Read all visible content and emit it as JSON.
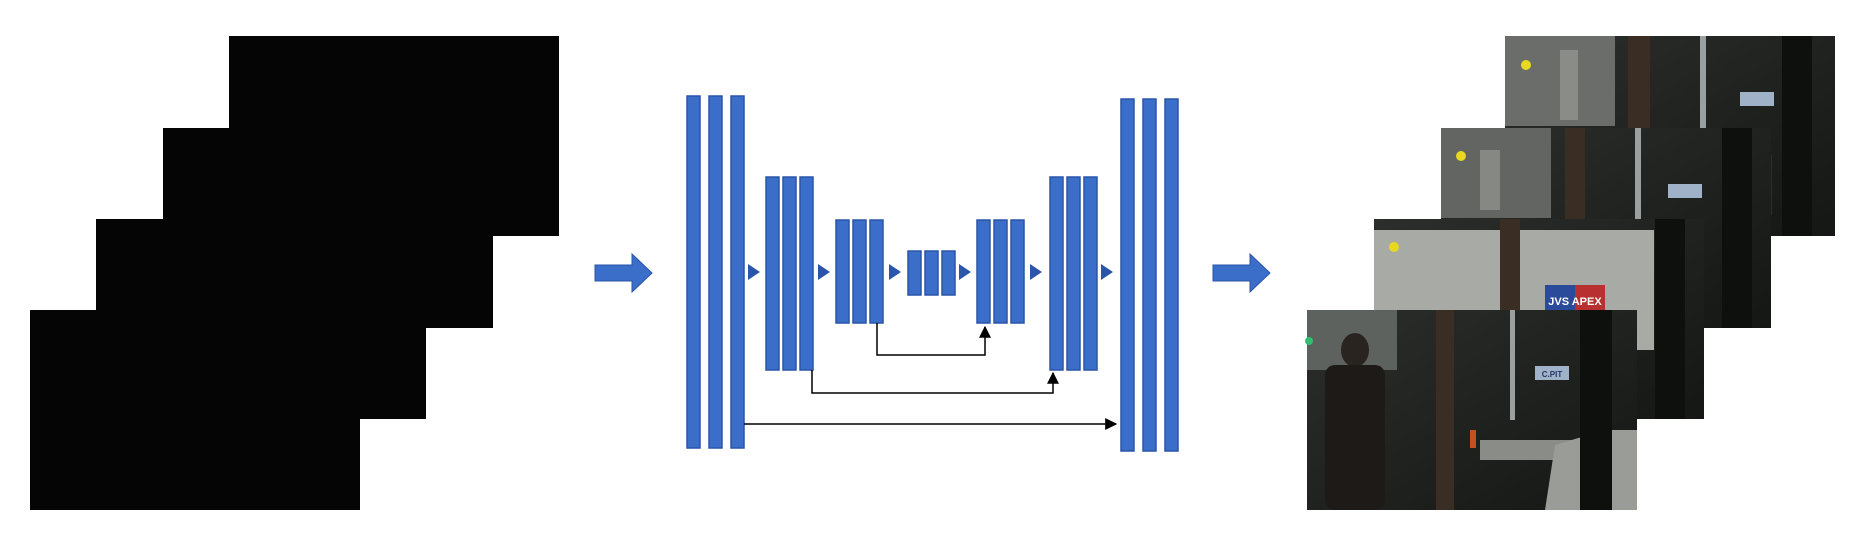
{
  "diagram": {
    "input_frames": {
      "count": 4,
      "tone": "dark",
      "fill": "#050505"
    },
    "network": {
      "type": "U-Net",
      "layer_color": "#3a6ec8",
      "layer_stroke": "#2a55a8",
      "connector_color": "#000000"
    },
    "flow_arrow_color": "#3a6ec8",
    "output_frames": {
      "count": 4,
      "sign_text_front": "JVS APEX",
      "sign_text_small": "C.PIT"
    }
  }
}
